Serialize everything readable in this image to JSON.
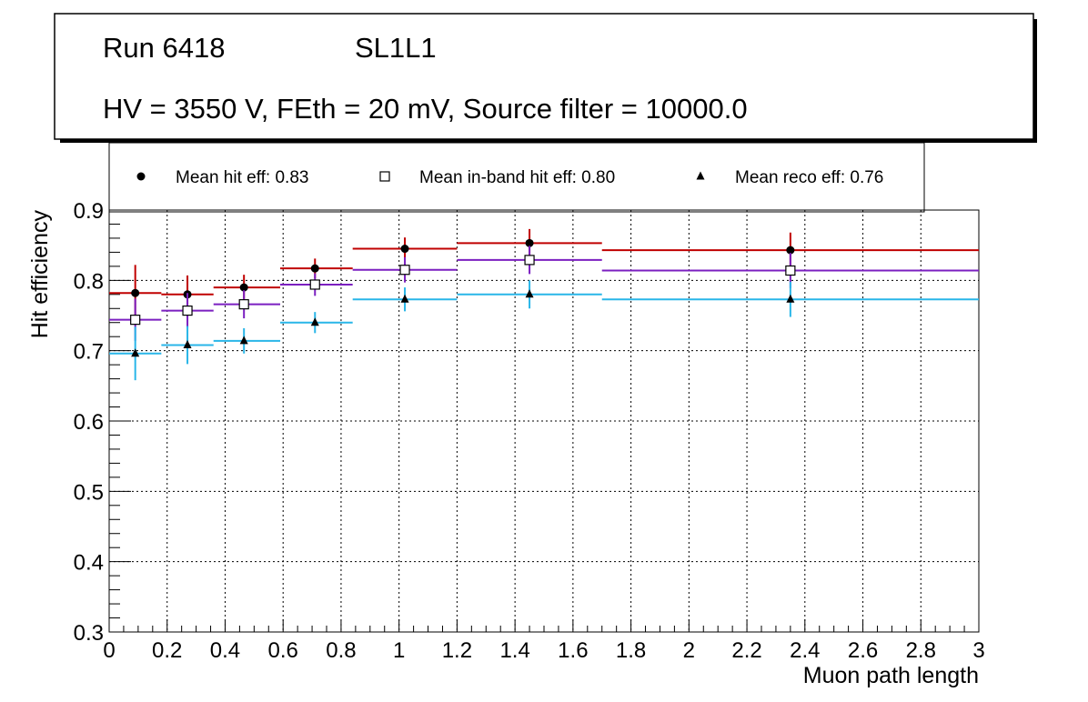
{
  "chart_data": {
    "type": "scatter",
    "title_box": {
      "run": "Run 6418",
      "layer": "SL1L1",
      "conditions": "HV = 3550 V, FEth = 20 mV, Source filter = 10000.0"
    },
    "xlabel": "Muon path length",
    "ylabel": "Hit efficiency",
    "xlim": [
      0,
      3
    ],
    "ylim": [
      0.3,
      0.9
    ],
    "xticks": [
      "0",
      "0.2",
      "0.4",
      "0.6",
      "0.8",
      "1",
      "1.2",
      "1.4",
      "1.6",
      "1.8",
      "2",
      "2.2",
      "2.4",
      "2.6",
      "2.8",
      "3"
    ],
    "yticks": [
      "0.3",
      "0.4",
      "0.5",
      "0.6",
      "0.7",
      "0.8",
      "0.9"
    ],
    "grid": true,
    "legend_position": "top",
    "bins": [
      [
        0,
        0.18
      ],
      [
        0.18,
        0.36
      ],
      [
        0.36,
        0.59
      ],
      [
        0.59,
        0.84
      ],
      [
        0.84,
        1.2
      ],
      [
        1.2,
        1.7
      ],
      [
        1.7,
        3.0
      ]
    ],
    "x": [
      0.09,
      0.27,
      0.465,
      0.71,
      1.02,
      1.45,
      2.35
    ],
    "series": [
      {
        "name": "Mean hit  eff: 0.83",
        "marker": "circle",
        "color": "#c00000",
        "values": [
          0.782,
          0.78,
          0.79,
          0.817,
          0.845,
          0.853,
          0.843
        ],
        "errors": [
          0.04,
          0.027,
          0.018,
          0.014,
          0.016,
          0.02,
          0.025
        ]
      },
      {
        "name": "Mean in-band hit eff: 0.80",
        "marker": "open-square",
        "color": "#7b1fc0",
        "values": [
          0.744,
          0.757,
          0.766,
          0.794,
          0.815,
          0.829,
          0.814
        ],
        "errors": [
          0.03,
          0.025,
          0.02,
          0.016,
          0.018,
          0.02,
          0.025
        ]
      },
      {
        "name": "Mean reco eff: 0.76",
        "marker": "triangle",
        "color": "#29b6e8",
        "values": [
          0.696,
          0.708,
          0.714,
          0.74,
          0.773,
          0.78,
          0.773
        ],
        "errors": [
          0.038,
          0.027,
          0.018,
          0.015,
          0.017,
          0.02,
          0.025
        ]
      }
    ]
  }
}
